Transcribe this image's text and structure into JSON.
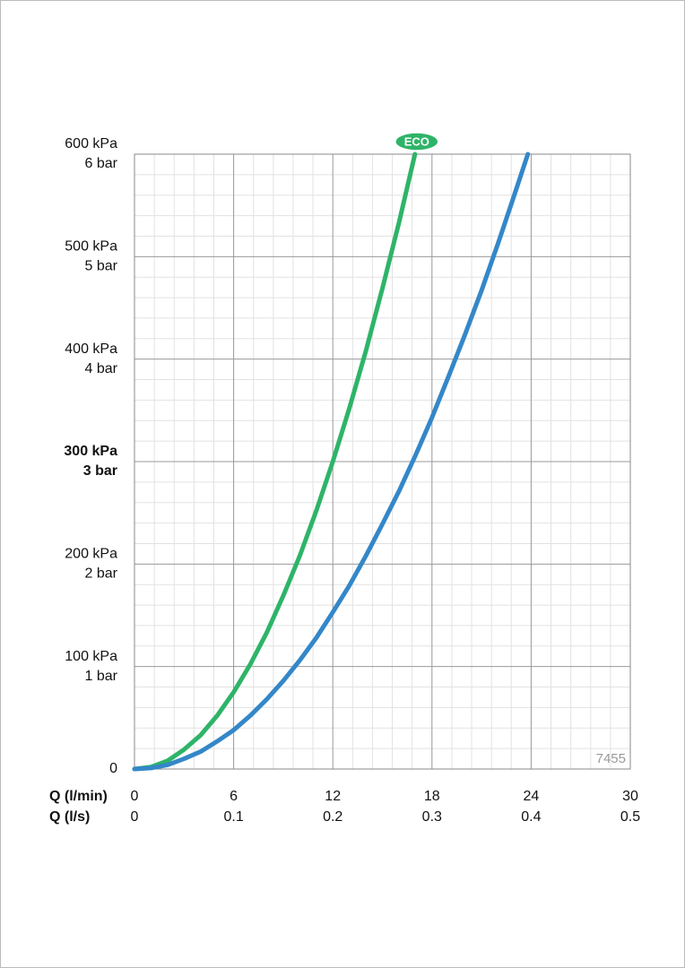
{
  "chart_data": {
    "type": "line",
    "xlabel": "Q (l/min)",
    "x2label": "Q (l/s)",
    "xlim": [
      0,
      30
    ],
    "xticks": [
      0,
      6,
      12,
      18,
      24,
      30
    ],
    "x2lim": [
      0,
      0.5
    ],
    "x2ticks": [
      0,
      0.1,
      0.2,
      0.3,
      0.4,
      0.5
    ],
    "ylim": [
      0,
      600
    ],
    "yticks": [
      0,
      {
        "value": 100,
        "label": "100 kPa"
      },
      {
        "value": 200,
        "label": "200 kPa"
      },
      {
        "value": 300,
        "label": "300 kPa"
      },
      {
        "value": 400,
        "label": "400 kPa"
      },
      {
        "value": 500,
        "label": "500 kPa"
      },
      {
        "value": 600,
        "label": "600 kPa"
      }
    ],
    "y2lim": [
      0,
      6
    ],
    "y2ticks": [
      {
        "value": 1,
        "label": "1 bar"
      },
      {
        "value": 2,
        "label": "2 bar"
      },
      {
        "value": 3,
        "label": "3 bar"
      },
      {
        "value": 4,
        "label": "4 bar"
      },
      {
        "value": 5,
        "label": "5 bar"
      },
      {
        "value": 6,
        "label": "6 bar"
      }
    ],
    "bold_tick_value": 300,
    "grid": true,
    "minor_grid_subdivisions": 5,
    "series": [
      {
        "name": "ECO",
        "color": "#2eb468",
        "x": [
          0,
          1,
          2,
          3,
          4,
          5,
          6,
          7,
          8,
          9,
          10,
          11,
          12,
          13,
          14,
          15,
          16,
          16.97
        ],
        "values": [
          0,
          2,
          8,
          19,
          33,
          52,
          75,
          102,
          133,
          169,
          208,
          252,
          300,
          352,
          408,
          469,
          533,
          600
        ]
      },
      {
        "color": "#3487c8",
        "x": [
          0,
          1,
          2,
          3,
          4,
          5,
          6,
          7,
          8,
          9,
          10,
          11,
          12,
          13,
          14,
          15,
          16,
          17,
          18,
          19,
          20,
          21,
          22,
          23,
          23.8
        ],
        "values": [
          0,
          1,
          4,
          10,
          17,
          27,
          38,
          52,
          68,
          86,
          106,
          128,
          153,
          179,
          208,
          239,
          271,
          306,
          343,
          383,
          424,
          467,
          513,
          561,
          600
        ]
      }
    ],
    "annotation": "7455"
  }
}
